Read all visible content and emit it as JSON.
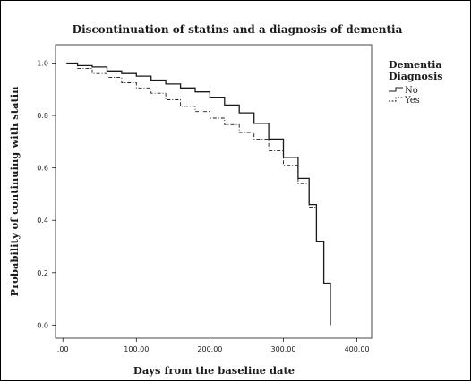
{
  "chart_data": {
    "type": "line",
    "title": "Discontinuation of statins and a diagnosis of dementia",
    "xlabel": "Days from the baseline date",
    "ylabel": "Probability of continuing with statin",
    "xlim": [
      -10,
      420
    ],
    "ylim": [
      -0.05,
      1.07
    ],
    "x_ticks": [
      0,
      100,
      200,
      300,
      400
    ],
    "x_tick_labels": [
      ".00",
      "100.00",
      "200.00",
      "300.00",
      "400.00"
    ],
    "y_ticks": [
      0.0,
      0.2,
      0.4,
      0.6,
      0.8,
      1.0
    ],
    "y_tick_labels": [
      "0.0",
      "0.2",
      "0.4",
      "0.6",
      "0.8",
      "1.0"
    ],
    "grid": false,
    "legend": {
      "title": "Dementia Diagnosis",
      "title_lines": [
        "Dementia",
        "Diagnosis"
      ],
      "placement": "right"
    },
    "series": [
      {
        "name": "No",
        "style": "solid",
        "color": "#1a1a1a",
        "points": [
          [
            5,
            1.0
          ],
          [
            20,
            0.99
          ],
          [
            40,
            0.985
          ],
          [
            60,
            0.97
          ],
          [
            80,
            0.96
          ],
          [
            100,
            0.95
          ],
          [
            120,
            0.935
          ],
          [
            140,
            0.92
          ],
          [
            160,
            0.905
          ],
          [
            180,
            0.89
          ],
          [
            200,
            0.87
          ],
          [
            220,
            0.84
          ],
          [
            240,
            0.81
          ],
          [
            260,
            0.77
          ],
          [
            280,
            0.71
          ],
          [
            300,
            0.64
          ],
          [
            320,
            0.56
          ],
          [
            335,
            0.46
          ],
          [
            345,
            0.32
          ],
          [
            355,
            0.16
          ],
          [
            364,
            0.0
          ]
        ]
      },
      {
        "name": "Yes",
        "style": "dashed",
        "color": "#1a1a1a",
        "points": [
          [
            5,
            1.0
          ],
          [
            20,
            0.98
          ],
          [
            40,
            0.96
          ],
          [
            60,
            0.945
          ],
          [
            80,
            0.925
          ],
          [
            100,
            0.905
          ],
          [
            120,
            0.885
          ],
          [
            140,
            0.86
          ],
          [
            160,
            0.835
          ],
          [
            180,
            0.815
          ],
          [
            200,
            0.79
          ],
          [
            220,
            0.765
          ],
          [
            240,
            0.735
          ],
          [
            260,
            0.71
          ],
          [
            280,
            0.665
          ],
          [
            300,
            0.61
          ],
          [
            320,
            0.54
          ],
          [
            335,
            0.45
          ],
          [
            345,
            0.32
          ],
          [
            355,
            0.16
          ],
          [
            364,
            0.0
          ]
        ]
      }
    ]
  }
}
